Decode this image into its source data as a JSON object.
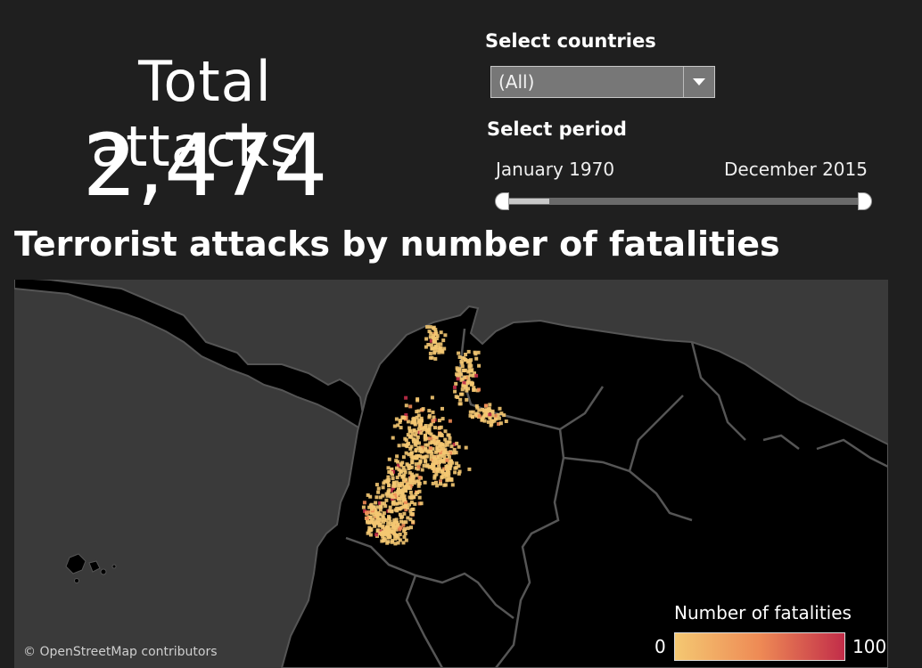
{
  "summary": {
    "label": "Total attacks:",
    "value": "2,474"
  },
  "filters": {
    "countries_label": "Select countries",
    "countries_value": "(All)",
    "period_label": "Select period",
    "period_start": "January 1970",
    "period_end": "December 2015",
    "period_fraction_selected": [
      0.0,
      0.13
    ]
  },
  "map": {
    "title": "Terrorist attacks by number of fatalities",
    "attribution": "© OpenStreetMap contributors",
    "legend": {
      "title": "Number of fatalities",
      "min": "0",
      "max": "100"
    },
    "colors": {
      "low": "#f4c872",
      "mid": "#ee8a55",
      "high": "#c22d49",
      "water": "#3a3a3a",
      "land": "#000000",
      "border": "#555555"
    }
  }
}
